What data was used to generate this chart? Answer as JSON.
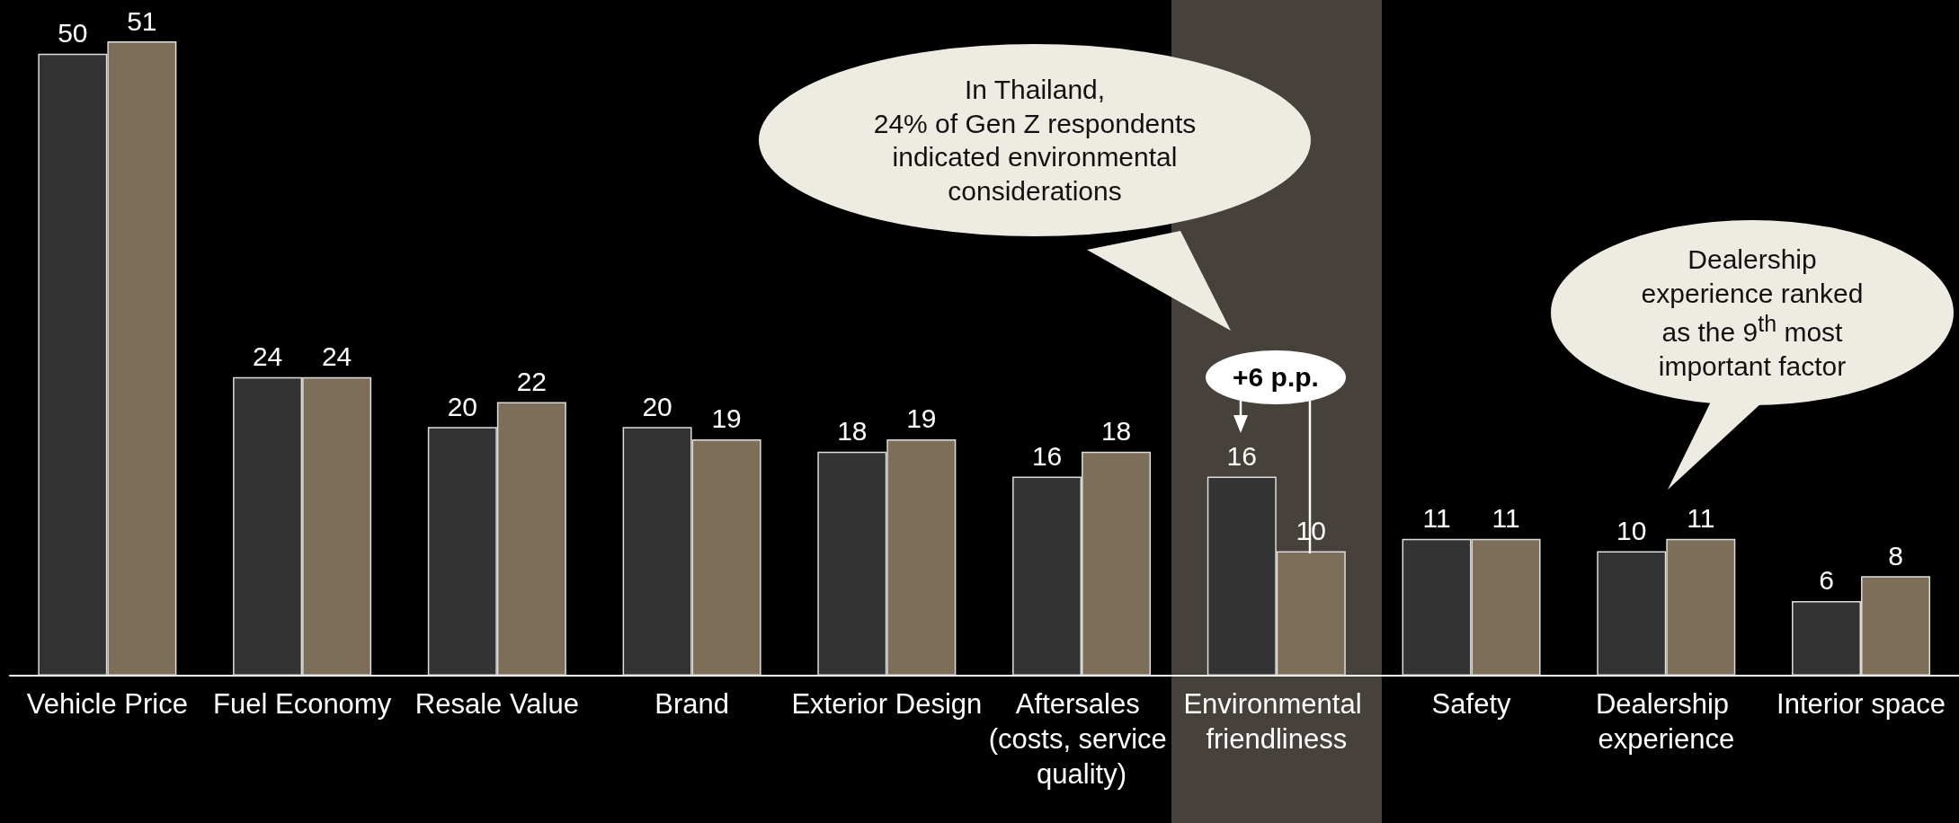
{
  "chart_data": {
    "type": "bar",
    "categories": [
      "Vehicle Price",
      "Fuel Economy",
      "Resale Value",
      "Brand",
      "Exterior Design",
      "Aftersales (costs, service quality)",
      "Environmental friendliness",
      "Safety",
      "Dealership experience",
      "Interior space"
    ],
    "series": [
      {
        "color": "#333333",
        "values": [
          50,
          24,
          20,
          20,
          18,
          16,
          16,
          11,
          10,
          6
        ]
      },
      {
        "color": "#7d6e59",
        "values": [
          51,
          24,
          22,
          19,
          19,
          18,
          10,
          11,
          11,
          8
        ]
      }
    ],
    "data_labels": true,
    "bands": [
      {
        "axis": "x",
        "from": "Environmental friendliness",
        "to": "Environmental friendliness",
        "color": "#46413a"
      }
    ],
    "annotations": [
      "In Thailand,\n24% of Gen Z respondents\nindicated environmental\nconsiderations",
      "Dealership\nexperience ranked\nas the 9$^{th}$ most\nimportant factor",
      "+6 p.p."
    ]
  }
}
